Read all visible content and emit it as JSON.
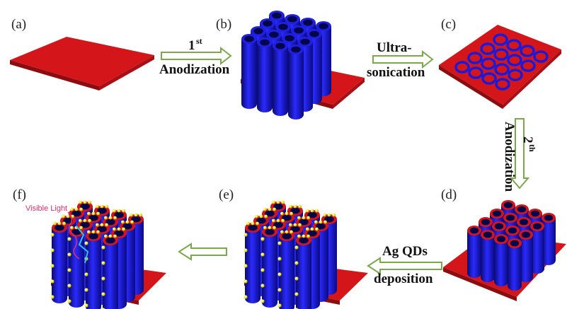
{
  "panels": {
    "a": "(a)",
    "b": "(b)",
    "c": "(c)",
    "d": "(d)",
    "e": "(e)",
    "f": "(f)"
  },
  "steps": {
    "first_anodization": {
      "sup": "1",
      "sup2": "st",
      "line2": "Anodization"
    },
    "ultrasonication": {
      "line1": "Ultra-",
      "line2": "sonication"
    },
    "second_anodization": {
      "line1": "2",
      "sup": "th",
      "line2": "Anodization"
    },
    "ag_deposition": {
      "line1": "Ag QDs",
      "line2": "deposition"
    }
  },
  "annotation": {
    "visible_light": "Visible Light"
  },
  "colors": {
    "substrate": "#d4161a",
    "tube": "#1a1ad8",
    "tube_dark": "#0b0b78",
    "qd": "#f5ec3a",
    "arrow_fill": "#ffffff",
    "arrow_stroke": "#7aa84a",
    "light": "#e0306a",
    "electron": "#28c8e8"
  }
}
